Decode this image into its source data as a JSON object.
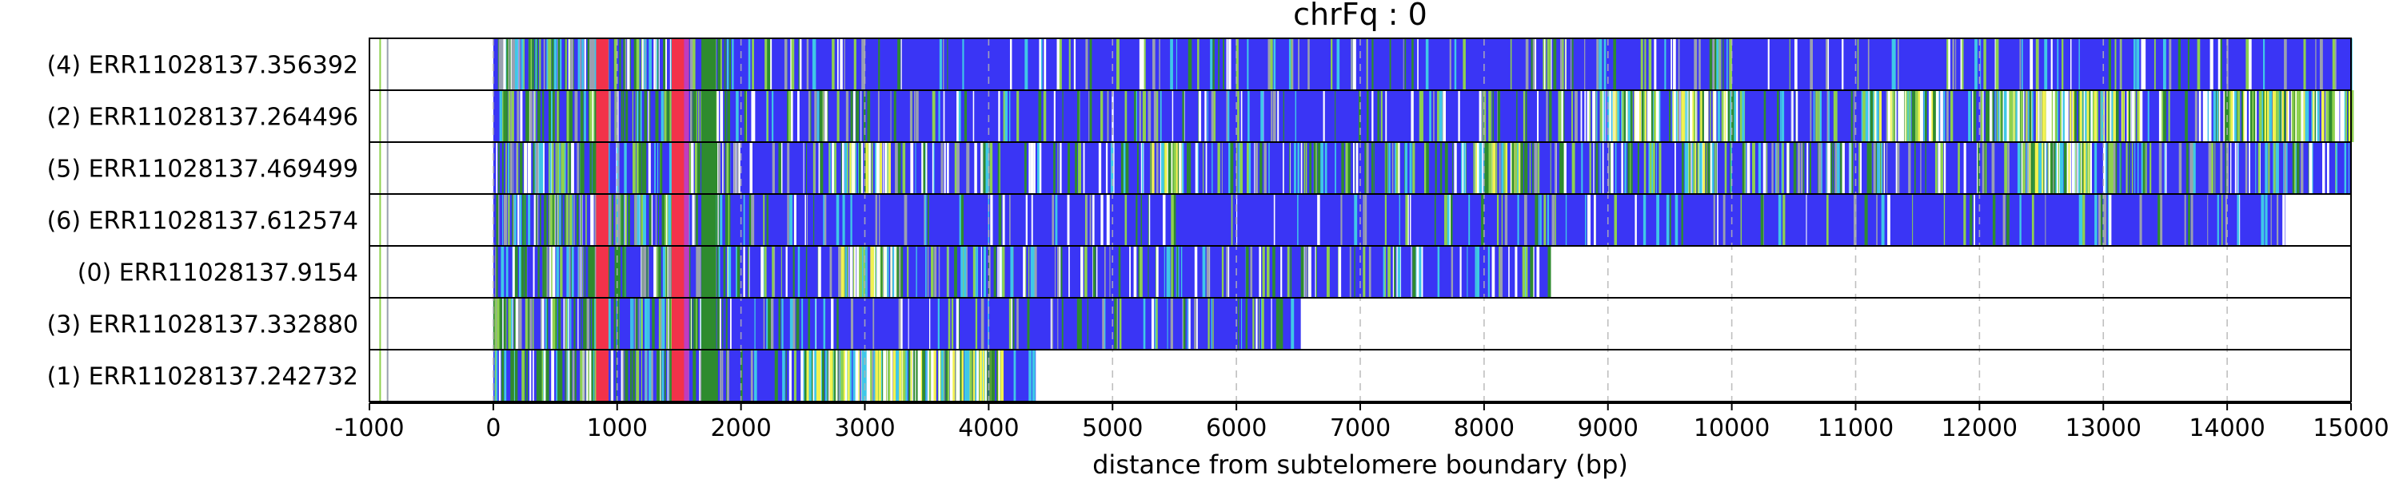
{
  "chart_data": {
    "type": "heatmap",
    "title": "chrFq : 0",
    "xlabel": "distance from subtelomere boundary (bp)",
    "ylabel": "",
    "xlim": [
      -1000,
      15000
    ],
    "xticks": [
      -1000,
      0,
      1000,
      2000,
      3000,
      4000,
      5000,
      6000,
      7000,
      8000,
      9000,
      10000,
      11000,
      12000,
      13000,
      14000,
      15000
    ],
    "grid": "vertical dashed lines at ticks",
    "colors": {
      "base": "#3a35f5",
      "green": "#2e8b2e",
      "lightgreen": "#8fd14f",
      "yellow": "#f2f250",
      "cyan": "#3fc8e8",
      "white": "#ffffff",
      "red": "#f2324a",
      "magenta": "#c03cc0",
      "grey": "#9aa0b0"
    },
    "reads": [
      {
        "label": "(4) ERR11028137.356392",
        "start": -1000,
        "end": 15000,
        "seed": 11,
        "density": 0.25,
        "hot": []
      },
      {
        "label": "(2) ERR11028137.264496",
        "start": -1000,
        "end": 15000,
        "seed": 23,
        "density": 0.35,
        "hot": [
          [
            8800,
            9400
          ],
          [
            9500,
            10100
          ],
          [
            11100,
            11700
          ],
          [
            12000,
            13300
          ],
          [
            13900,
            15000
          ]
        ]
      },
      {
        "label": "(5) ERR11028137.469499",
        "start": -1000,
        "end": 15000,
        "seed": 37,
        "density": 0.55,
        "hot": [
          [
            2800,
            3200
          ],
          [
            5300,
            5600
          ],
          [
            7900,
            8300
          ],
          [
            9600,
            9900
          ],
          [
            12300,
            12900
          ]
        ]
      },
      {
        "label": "(6) ERR11028137.612574",
        "start": -1000,
        "end": 14470,
        "seed": 41,
        "density": 0.2,
        "hot": []
      },
      {
        "label": "(0) ERR11028137.9154",
        "start": -1000,
        "end": 8520,
        "seed": 53,
        "density": 0.45,
        "hot": [
          [
            2800,
            3300
          ]
        ]
      },
      {
        "label": "(3) ERR11028137.332880",
        "start": -1000,
        "end": 6520,
        "seed": 67,
        "density": 0.3,
        "hot": []
      },
      {
        "label": "(1) ERR11028137.242732",
        "start": -1000,
        "end": 4380,
        "seed": 79,
        "density": 0.5,
        "hot": [
          [
            2500,
            4100
          ]
        ]
      }
    ]
  }
}
